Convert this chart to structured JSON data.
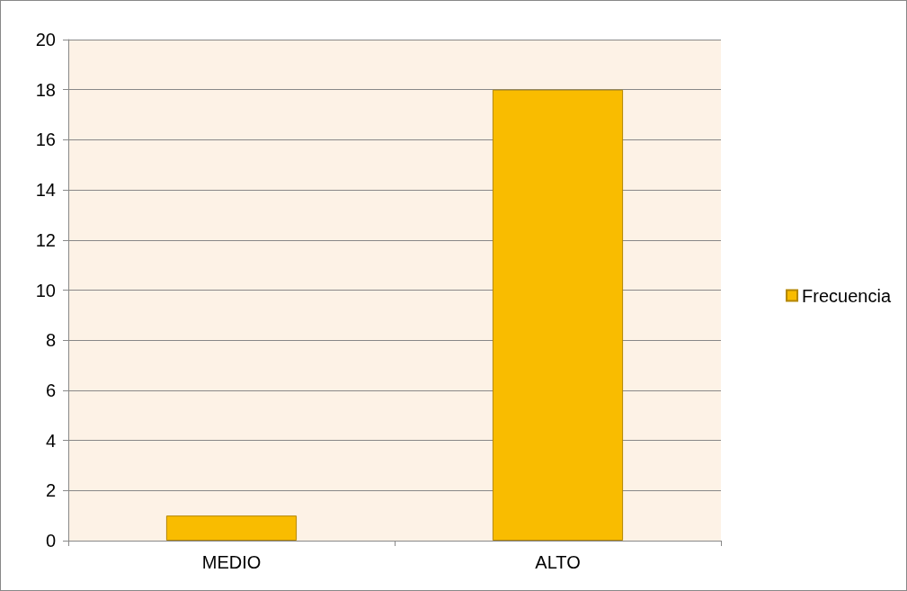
{
  "chart_data": {
    "type": "bar",
    "categories": [
      "MEDIO",
      "ALTO"
    ],
    "series": [
      {
        "name": "Frecuencia",
        "color": "#f9bc00",
        "values": [
          1,
          18
        ]
      }
    ],
    "ylim": [
      0,
      20
    ],
    "yticks": [
      0,
      2,
      4,
      6,
      8,
      10,
      12,
      14,
      16,
      18,
      20
    ],
    "grid": "y",
    "legend": "right"
  }
}
